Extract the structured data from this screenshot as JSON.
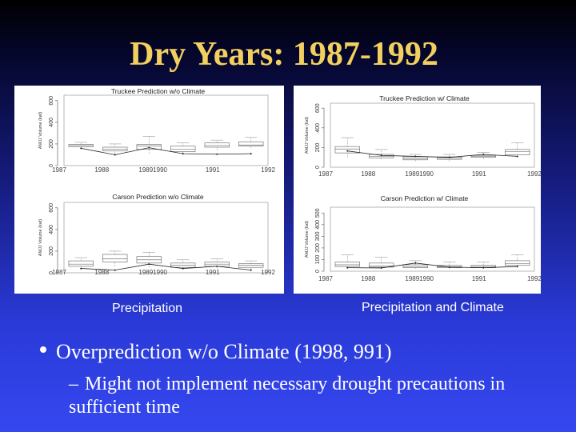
{
  "slide": {
    "title": "Dry Years:  1987-1992",
    "caption_left": "Precipitation",
    "caption_right": "Precipitation and Climate",
    "bullet": "Overprediction w/o Climate (1998, 991)",
    "sub_dash": "–",
    "sub_bullet": "Might not implement necessary drought precautions in sufficient time"
  },
  "charts": [
    {
      "title": "Truckee Prediction w/o Climate",
      "ylabel": "AMJJ Volume (kaf)",
      "yticks": [
        "0",
        "200",
        "400",
        "600"
      ],
      "xticks": [
        "1987",
        "1988",
        "19891990",
        "1991",
        "1992"
      ]
    },
    {
      "title": "Carson Prediction w/o Climate",
      "ylabel": "AMJJ Volume (kaf)",
      "yticks": [
        "0",
        "200",
        "400",
        "600"
      ],
      "xticks": [
        "1987",
        "1988",
        "19891990",
        "1991",
        "1992"
      ]
    },
    {
      "title": "Truckee Prediction w/ Climate",
      "ylabel": "AMJJ Volume (kaf)",
      "yticks": [
        "0",
        "200",
        "400",
        "600"
      ],
      "xticks": [
        "1987",
        "1988",
        "19891990",
        "1991",
        "1992"
      ]
    },
    {
      "title": "Carson Prediction w/  Climate",
      "ylabel": "AMJJ Volume (kaf)",
      "yticks": [
        "0",
        "100",
        "200",
        "300",
        "400",
        "500"
      ],
      "xticks": [
        "1987",
        "1988",
        "19891990",
        "1991",
        "1992"
      ]
    }
  ],
  "chart_data": [
    {
      "type": "box",
      "title": "Truckee Prediction w/o Climate",
      "ylabel": "AMJJ Volume (kaf)",
      "ylim": [
        0,
        650
      ],
      "categories": [
        "1987",
        "1988",
        "1989",
        "1990",
        "1991",
        "1992"
      ],
      "boxes": [
        [
          150,
          175,
          185,
          195,
          215
        ],
        [
          110,
          135,
          150,
          170,
          200
        ],
        [
          110,
          150,
          180,
          195,
          270
        ],
        [
          110,
          130,
          150,
          180,
          210
        ],
        [
          140,
          170,
          185,
          210,
          235
        ],
        [
          160,
          180,
          190,
          220,
          260
        ]
      ],
      "observed": [
        160,
        100,
        165,
        110,
        105,
        110
      ]
    },
    {
      "type": "box",
      "title": "Carson Prediction w/o Climate",
      "ylabel": "AMJJ Volume (kaf)",
      "ylim": [
        0,
        650
      ],
      "categories": [
        "1987",
        "1988",
        "1989",
        "1990",
        "1991",
        "1992"
      ],
      "boxes": [
        [
          30,
          60,
          80,
          110,
          140
        ],
        [
          60,
          100,
          130,
          170,
          200
        ],
        [
          50,
          90,
          120,
          150,
          190
        ],
        [
          30,
          50,
          70,
          90,
          120
        ],
        [
          40,
          60,
          80,
          100,
          130
        ],
        [
          30,
          50,
          70,
          85,
          110
        ]
      ],
      "observed": [
        40,
        25,
        80,
        40,
        60,
        25
      ]
    },
    {
      "type": "box",
      "title": "Truckee Prediction w/ Climate",
      "ylabel": "AMJJ Volume (kaf)",
      "ylim": [
        0,
        650
      ],
      "categories": [
        "1987",
        "1988",
        "1989",
        "1990",
        "1991",
        "1992"
      ],
      "boxes": [
        [
          100,
          145,
          185,
          210,
          300
        ],
        [
          80,
          95,
          110,
          130,
          180
        ],
        [
          60,
          75,
          85,
          105,
          130
        ],
        [
          60,
          80,
          95,
          105,
          130
        ],
        [
          80,
          100,
          110,
          120,
          150
        ],
        [
          100,
          125,
          160,
          180,
          250
        ]
      ],
      "observed": [
        165,
        120,
        110,
        100,
        130,
        110
      ]
    },
    {
      "type": "box",
      "title": "Carson Prediction w/  Climate",
      "ylabel": "AMJJ Volume (kaf)",
      "ylim": [
        0,
        550
      ],
      "categories": [
        "1987",
        "1988",
        "1989",
        "1990",
        "1991",
        "1992"
      ],
      "boxes": [
        [
          20,
          40,
          55,
          80,
          140
        ],
        [
          20,
          35,
          45,
          70,
          120
        ],
        [
          20,
          30,
          40,
          55,
          90
        ],
        [
          20,
          30,
          38,
          50,
          80
        ],
        [
          20,
          30,
          40,
          50,
          80
        ],
        [
          30,
          50,
          65,
          90,
          140
        ]
      ],
      "observed": [
        30,
        28,
        70,
        35,
        30,
        40
      ]
    }
  ]
}
